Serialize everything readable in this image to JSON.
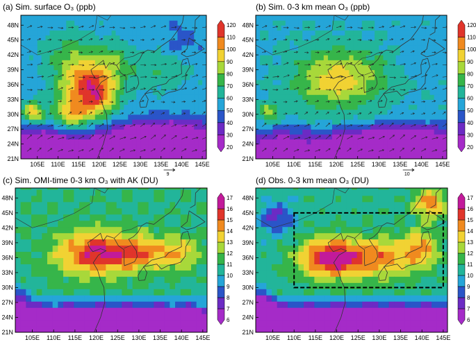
{
  "colors": {
    "magenta": "#c21a9a",
    "red": "#e0352b",
    "orange": "#f08a1f",
    "yellow": "#f1d233",
    "lime": "#a8d83a",
    "green": "#36b54a",
    "teal": "#22b59a",
    "cyan": "#25a5d8",
    "blue": "#2a55c8",
    "purple": "#6c2bc4",
    "violet": "#a52bc8",
    "landline": "#333333",
    "vector": "#222222"
  },
  "chart_data": [
    {
      "type": "heatmap",
      "title": "(a) Sim. surface O₃ (ppb)",
      "x_ticks": [
        "105E",
        "110E",
        "115E",
        "120E",
        "125E",
        "130E",
        "135E",
        "140E",
        "145E"
      ],
      "y_ticks": [
        "21N",
        "24N",
        "27N",
        "30N",
        "33N",
        "36N",
        "39N",
        "42N",
        "45N",
        "48N"
      ],
      "xlim": [
        101,
        146
      ],
      "ylim": [
        21,
        50
      ],
      "colorbar": {
        "ticks": [
          "20",
          "30",
          "40",
          "50",
          "60",
          "70",
          "80",
          "90",
          "100",
          "110",
          "120"
        ],
        "min": 20,
        "max": 120
      },
      "wind_reference": {
        "label": "9"
      },
      "field": {
        "base": 52,
        "south_gradient": 6,
        "blobs": [
          {
            "lon": 117,
            "lat": 36,
            "rx": 7,
            "ry": 7,
            "v": 48
          },
          {
            "lon": 120,
            "lat": 34,
            "rx": 4,
            "ry": 4,
            "v": 20
          },
          {
            "lon": 113,
            "lat": 30,
            "rx": 4,
            "ry": 3,
            "v": 25
          },
          {
            "lon": 104,
            "lat": 30.5,
            "rx": 2.5,
            "ry": 2,
            "v": 38
          },
          {
            "lon": 124,
            "lat": 41,
            "rx": 4,
            "ry": 3,
            "v": 10
          },
          {
            "lon": 134,
            "lat": 39,
            "rx": 9,
            "ry": 4,
            "v": 12
          },
          {
            "lon": 110,
            "lat": 43,
            "rx": 5,
            "ry": 4,
            "v": 10
          },
          {
            "lon": 140,
            "lat": 45,
            "rx": 5,
            "ry": 4,
            "v": -8
          },
          {
            "lon": 108,
            "lat": 24,
            "rx": 5,
            "ry": 3,
            "v": -15
          },
          {
            "lon": 137,
            "lat": 24,
            "rx": 10,
            "ry": 4,
            "v": -35
          },
          {
            "lon": 125,
            "lat": 23,
            "rx": 8,
            "ry": 3,
            "v": -30
          },
          {
            "lon": 130,
            "lat": 28.5,
            "rx": 15,
            "ry": 2,
            "v": -10
          }
        ]
      }
    },
    {
      "type": "heatmap",
      "title": "(b) Sim. 0-3 km mean O₃ (ppb)",
      "x_ticks": [
        "105E",
        "110E",
        "115E",
        "120E",
        "125E",
        "130E",
        "135E",
        "140E",
        "145E"
      ],
      "y_ticks": [
        "21N",
        "24N",
        "27N",
        "30N",
        "33N",
        "36N",
        "39N",
        "42N",
        "45N",
        "48N"
      ],
      "xlim": [
        101,
        146
      ],
      "ylim": [
        21,
        50
      ],
      "colorbar": {
        "ticks": [
          "20",
          "30",
          "40",
          "50",
          "60",
          "70",
          "80",
          "90",
          "100",
          "110",
          "120"
        ],
        "min": 20,
        "max": 120
      },
      "wind_reference": {
        "label": "10"
      },
      "field": {
        "base": 55,
        "south_gradient": 5,
        "blobs": [
          {
            "lon": 119,
            "lat": 37,
            "rx": 9,
            "ry": 6,
            "v": 30
          },
          {
            "lon": 128,
            "lat": 38,
            "rx": 8,
            "ry": 5,
            "v": 10
          },
          {
            "lon": 104,
            "lat": 30.5,
            "rx": 2.5,
            "ry": 2,
            "v": 22
          },
          {
            "lon": 140,
            "lat": 42,
            "rx": 6,
            "ry": 5,
            "v": -5
          },
          {
            "lon": 137,
            "lat": 24,
            "rx": 10,
            "ry": 4,
            "v": -32
          },
          {
            "lon": 125,
            "lat": 23,
            "rx": 8,
            "ry": 3,
            "v": -30
          },
          {
            "lon": 108,
            "lat": 24,
            "rx": 5,
            "ry": 3,
            "v": -12
          }
        ]
      }
    },
    {
      "type": "heatmap",
      "title": "(c) Sim. OMI-time 0-3 km O₃ with AK (DU)",
      "x_ticks": [
        "105E",
        "110E",
        "115E",
        "120E",
        "125E",
        "130E",
        "135E",
        "140E",
        "145E"
      ],
      "y_ticks": [
        "21N",
        "24N",
        "27N",
        "30N",
        "33N",
        "36N",
        "39N",
        "42N",
        "45N",
        "48N"
      ],
      "xlim": [
        101,
        146
      ],
      "ylim": [
        21,
        50
      ],
      "colorbar": {
        "ticks": [
          "6",
          "7",
          "8",
          "9",
          "10",
          "11",
          "12",
          "13",
          "14",
          "15",
          "16",
          "17"
        ],
        "min": 6,
        "max": 17
      },
      "field": {
        "base": 10.8,
        "south_gradient": 0.9,
        "blobs": [
          {
            "lon": 119,
            "lat": 37,
            "rx": 9,
            "ry": 4.5,
            "v": 4.5
          },
          {
            "lon": 131,
            "lat": 37,
            "rx": 10,
            "ry": 3.5,
            "v": 3.5
          },
          {
            "lon": 140,
            "lat": 37,
            "rx": 4,
            "ry": 3,
            "v": 1.5
          },
          {
            "lon": 125,
            "lat": 23,
            "rx": 20,
            "ry": 2.5,
            "v": -3.5
          },
          {
            "lon": 102,
            "lat": 26,
            "rx": 3,
            "ry": 4,
            "v": -3
          }
        ]
      }
    },
    {
      "type": "heatmap",
      "title": "(d) Obs. 0-3 km mean O₃ (DU)",
      "x_ticks": [
        "105E",
        "110E",
        "115E",
        "120E",
        "125E",
        "130E",
        "135E",
        "140E",
        "145E"
      ],
      "y_ticks": [
        "21N",
        "24N",
        "27N",
        "30N",
        "33N",
        "36N",
        "39N",
        "42N",
        "45N",
        "48N"
      ],
      "xlim": [
        101,
        146
      ],
      "ylim": [
        21,
        50
      ],
      "colorbar": {
        "ticks": [
          "6",
          "7",
          "8",
          "9",
          "10",
          "11",
          "12",
          "13",
          "14",
          "15",
          "16",
          "17"
        ],
        "min": 6,
        "max": 17
      },
      "box": {
        "lon": [
          110,
          145
        ],
        "lat": [
          30,
          45
        ]
      },
      "field": {
        "base": 10.6,
        "south_gradient": 0.9,
        "blobs": [
          {
            "lon": 118,
            "lat": 36,
            "rx": 7,
            "ry": 4,
            "v": 5.5
          },
          {
            "lon": 130,
            "lat": 36,
            "rx": 9,
            "ry": 4,
            "v": 4
          },
          {
            "lon": 140,
            "lat": 38,
            "rx": 4,
            "ry": 4,
            "v": 3
          },
          {
            "lon": 142,
            "lat": 47,
            "rx": 4,
            "ry": 3,
            "v": 4
          },
          {
            "lon": 106,
            "lat": 44,
            "rx": 4,
            "ry": 3,
            "v": -3
          },
          {
            "lon": 125,
            "lat": 23,
            "rx": 20,
            "ry": 2.5,
            "v": -4
          },
          {
            "lon": 102,
            "lat": 26,
            "rx": 3,
            "ry": 4,
            "v": -3.5
          }
        ]
      }
    }
  ]
}
